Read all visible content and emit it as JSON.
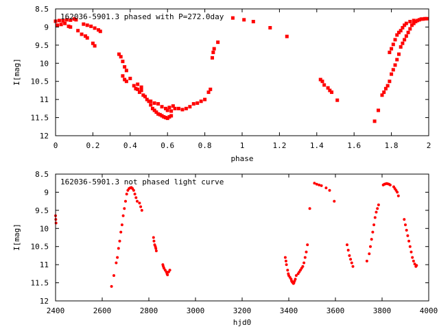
{
  "colors": {
    "points": "#ff0000",
    "axes": "#000000",
    "background": "#ffffff"
  },
  "chart_data": [
    {
      "type": "scatter",
      "title": "162036-5901.3 phased with P=272.0day",
      "xlabel": "phase",
      "ylabel": "I[mag]",
      "xlim": [
        0,
        2
      ],
      "ylim": [
        12,
        8.5
      ],
      "y_inverted": true,
      "grid": false,
      "x_ticks": [
        "0",
        "0.2",
        "0.4",
        "0.6",
        "0.8",
        "1",
        "1.2",
        "1.4",
        "1.6",
        "1.8",
        "2"
      ],
      "y_ticks": [
        "8.5",
        "9",
        "9.5",
        "10",
        "10.5",
        "11",
        "11.5",
        "12"
      ],
      "series": [
        {
          "marker": "filled-square",
          "points": [
            [
              0.0,
              8.84
            ],
            [
              0.02,
              8.82
            ],
            [
              0.04,
              8.83
            ],
            [
              0.06,
              8.8
            ],
            [
              0.08,
              8.81
            ],
            [
              0.1,
              8.78
            ],
            [
              0.11,
              8.8
            ],
            [
              0.01,
              8.95
            ],
            [
              0.03,
              8.93
            ],
            [
              0.05,
              8.9
            ],
            [
              0.07,
              8.98
            ],
            [
              0.08,
              9.0
            ],
            [
              0.12,
              9.1
            ],
            [
              0.14,
              9.2
            ],
            [
              0.16,
              9.25
            ],
            [
              0.17,
              9.3
            ],
            [
              0.2,
              9.45
            ],
            [
              0.21,
              9.52
            ],
            [
              0.15,
              8.92
            ],
            [
              0.17,
              8.95
            ],
            [
              0.19,
              8.98
            ],
            [
              0.21,
              9.03
            ],
            [
              0.23,
              9.08
            ],
            [
              0.24,
              9.12
            ],
            [
              0.34,
              9.75
            ],
            [
              0.35,
              9.82
            ],
            [
              0.36,
              9.95
            ],
            [
              0.37,
              10.1
            ],
            [
              0.38,
              10.2
            ],
            [
              0.36,
              10.35
            ],
            [
              0.37,
              10.45
            ],
            [
              0.38,
              10.5
            ],
            [
              0.4,
              10.42
            ],
            [
              0.42,
              10.62
            ],
            [
              0.43,
              10.7
            ],
            [
              0.44,
              10.72
            ],
            [
              0.45,
              10.8
            ],
            [
              0.46,
              10.75
            ],
            [
              0.47,
              10.88
            ],
            [
              0.48,
              10.92
            ],
            [
              0.44,
              10.58
            ],
            [
              0.46,
              10.66
            ],
            [
              0.49,
              11.0
            ],
            [
              0.5,
              11.05
            ],
            [
              0.51,
              11.15
            ],
            [
              0.52,
              11.25
            ],
            [
              0.53,
              11.3
            ],
            [
              0.54,
              11.35
            ],
            [
              0.55,
              11.4
            ],
            [
              0.56,
              11.42
            ],
            [
              0.57,
              11.45
            ],
            [
              0.58,
              11.48
            ],
            [
              0.59,
              11.5
            ],
            [
              0.6,
              11.52
            ],
            [
              0.61,
              11.48
            ],
            [
              0.62,
              11.45
            ],
            [
              0.51,
              11.05
            ],
            [
              0.53,
              11.1
            ],
            [
              0.55,
              11.12
            ],
            [
              0.57,
              11.2
            ],
            [
              0.59,
              11.25
            ],
            [
              0.61,
              11.22
            ],
            [
              0.63,
              11.18
            ],
            [
              0.6,
              11.3
            ],
            [
              0.62,
              11.32
            ],
            [
              0.64,
              11.25
            ],
            [
              0.66,
              11.25
            ],
            [
              0.68,
              11.28
            ],
            [
              0.7,
              11.25
            ],
            [
              0.72,
              11.2
            ],
            [
              0.74,
              11.12
            ],
            [
              0.76,
              11.1
            ],
            [
              0.78,
              11.05
            ],
            [
              0.8,
              11.0
            ],
            [
              0.82,
              10.8
            ],
            [
              0.83,
              10.72
            ],
            [
              0.84,
              9.85
            ],
            [
              0.845,
              9.7
            ],
            [
              0.85,
              9.6
            ],
            [
              0.87,
              9.42
            ],
            [
              0.95,
              8.75
            ],
            [
              1.01,
              8.8
            ],
            [
              1.06,
              8.85
            ],
            [
              1.15,
              9.02
            ],
            [
              1.24,
              9.26
            ],
            [
              1.42,
              10.45
            ],
            [
              1.43,
              10.5
            ],
            [
              1.44,
              10.6
            ],
            [
              1.46,
              10.68
            ],
            [
              1.47,
              10.75
            ],
            [
              1.48,
              10.8
            ],
            [
              1.51,
              11.02
            ],
            [
              1.71,
              11.6
            ],
            [
              1.73,
              11.3
            ],
            [
              1.75,
              10.88
            ],
            [
              1.76,
              10.8
            ],
            [
              1.77,
              10.7
            ],
            [
              1.78,
              10.62
            ],
            [
              1.79,
              10.5
            ],
            [
              1.8,
              10.3
            ],
            [
              1.81,
              10.18
            ],
            [
              1.82,
              10.05
            ],
            [
              1.83,
              9.9
            ],
            [
              1.84,
              9.75
            ],
            [
              1.85,
              9.55
            ],
            [
              1.86,
              9.45
            ],
            [
              1.87,
              9.35
            ],
            [
              1.88,
              9.25
            ],
            [
              1.89,
              9.15
            ],
            [
              1.9,
              9.05
            ],
            [
              1.91,
              8.95
            ],
            [
              1.92,
              8.9
            ],
            [
              1.93,
              8.85
            ],
            [
              1.94,
              8.82
            ],
            [
              1.95,
              8.8
            ],
            [
              1.96,
              8.78
            ],
            [
              1.97,
              8.78
            ],
            [
              1.98,
              8.77
            ],
            [
              1.99,
              8.77
            ],
            [
              1.79,
              9.7
            ],
            [
              1.8,
              9.6
            ],
            [
              1.81,
              9.48
            ],
            [
              1.82,
              9.35
            ],
            [
              1.83,
              9.22
            ],
            [
              1.84,
              9.15
            ],
            [
              1.85,
              9.1
            ],
            [
              1.86,
              9.02
            ],
            [
              1.87,
              8.95
            ],
            [
              1.88,
              8.9
            ],
            [
              1.9,
              8.85
            ],
            [
              1.92,
              8.82
            ]
          ]
        }
      ]
    },
    {
      "type": "scatter",
      "title": "162036-5901.3 not phased light curve",
      "xlabel": "hjd0",
      "ylabel": "I[mag]",
      "xlim": [
        2400,
        4000
      ],
      "ylim": [
        12,
        8.5
      ],
      "y_inverted": true,
      "grid": false,
      "x_ticks": [
        "2400",
        "2600",
        "2800",
        "3000",
        "3200",
        "3400",
        "3600",
        "3800",
        "4000"
      ],
      "y_ticks": [
        "8.5",
        "9",
        "9.5",
        "10",
        "10.5",
        "11",
        "11.5",
        "12"
      ],
      "series": [
        {
          "marker": "filled-circle",
          "points": [
            [
              2400,
              9.65
            ],
            [
              2401,
              9.75
            ],
            [
              2402,
              9.85
            ],
            [
              2640,
              11.6
            ],
            [
              2650,
              11.3
            ],
            [
              2660,
              10.95
            ],
            [
              2665,
              10.8
            ],
            [
              2670,
              10.55
            ],
            [
              2675,
              10.35
            ],
            [
              2680,
              10.1
            ],
            [
              2685,
              9.9
            ],
            [
              2690,
              9.65
            ],
            [
              2695,
              9.45
            ],
            [
              2700,
              9.25
            ],
            [
              2705,
              9.05
            ],
            [
              2710,
              8.95
            ],
            [
              2715,
              8.9
            ],
            [
              2720,
              8.88
            ],
            [
              2725,
              8.87
            ],
            [
              2730,
              8.9
            ],
            [
              2735,
              8.95
            ],
            [
              2740,
              9.05
            ],
            [
              2745,
              9.15
            ],
            [
              2750,
              9.25
            ],
            [
              2760,
              9.3
            ],
            [
              2765,
              9.4
            ],
            [
              2770,
              9.5
            ],
            [
              2820,
              10.25
            ],
            [
              2822,
              10.35
            ],
            [
              2825,
              10.45
            ],
            [
              2828,
              10.5
            ],
            [
              2830,
              10.55
            ],
            [
              2832,
              10.62
            ],
            [
              2860,
              11.0
            ],
            [
              2862,
              11.05
            ],
            [
              2865,
              11.1
            ],
            [
              2870,
              11.15
            ],
            [
              2875,
              11.2
            ],
            [
              2878,
              11.25
            ],
            [
              2880,
              11.28
            ],
            [
              2885,
              11.2
            ],
            [
              2890,
              11.15
            ],
            [
              3385,
              10.8
            ],
            [
              3388,
              10.9
            ],
            [
              3390,
              11.0
            ],
            [
              3395,
              11.15
            ],
            [
              3398,
              11.25
            ],
            [
              3400,
              11.3
            ],
            [
              3405,
              11.35
            ],
            [
              3410,
              11.4
            ],
            [
              3412,
              11.45
            ],
            [
              3415,
              11.48
            ],
            [
              3418,
              11.5
            ],
            [
              3420,
              11.52
            ],
            [
              3422,
              11.5
            ],
            [
              3425,
              11.45
            ],
            [
              3428,
              11.4
            ],
            [
              3432,
              11.3
            ],
            [
              3440,
              11.25
            ],
            [
              3445,
              11.2
            ],
            [
              3450,
              11.15
            ],
            [
              3455,
              11.1
            ],
            [
              3460,
              11.05
            ],
            [
              3465,
              10.95
            ],
            [
              3470,
              10.8
            ],
            [
              3475,
              10.65
            ],
            [
              3480,
              10.45
            ],
            [
              3490,
              9.45
            ],
            [
              3510,
              8.75
            ],
            [
              3520,
              8.78
            ],
            [
              3530,
              8.8
            ],
            [
              3540,
              8.82
            ],
            [
              3560,
              8.88
            ],
            [
              3575,
              8.95
            ],
            [
              3595,
              9.25
            ],
            [
              3650,
              10.45
            ],
            [
              3655,
              10.6
            ],
            [
              3660,
              10.75
            ],
            [
              3665,
              10.85
            ],
            [
              3670,
              10.95
            ],
            [
              3675,
              11.05
            ],
            [
              3735,
              10.9
            ],
            [
              3745,
              10.7
            ],
            [
              3750,
              10.5
            ],
            [
              3755,
              10.3
            ],
            [
              3760,
              10.1
            ],
            [
              3765,
              9.9
            ],
            [
              3770,
              9.7
            ],
            [
              3775,
              9.55
            ],
            [
              3780,
              9.45
            ],
            [
              3785,
              9.35
            ],
            [
              3805,
              8.8
            ],
            [
              3810,
              8.78
            ],
            [
              3815,
              8.77
            ],
            [
              3820,
              8.76
            ],
            [
              3825,
              8.77
            ],
            [
              3830,
              8.78
            ],
            [
              3835,
              8.8
            ],
            [
              3850,
              8.85
            ],
            [
              3855,
              8.9
            ],
            [
              3860,
              8.95
            ],
            [
              3865,
              9.0
            ],
            [
              3870,
              9.1
            ],
            [
              3895,
              9.75
            ],
            [
              3900,
              9.9
            ],
            [
              3905,
              10.05
            ],
            [
              3910,
              10.2
            ],
            [
              3915,
              10.35
            ],
            [
              3920,
              10.5
            ],
            [
              3925,
              10.65
            ],
            [
              3930,
              10.8
            ],
            [
              3935,
              10.9
            ],
            [
              3940,
              10.98
            ],
            [
              3945,
              11.05
            ],
            [
              3948,
              11.02
            ]
          ]
        }
      ]
    }
  ]
}
